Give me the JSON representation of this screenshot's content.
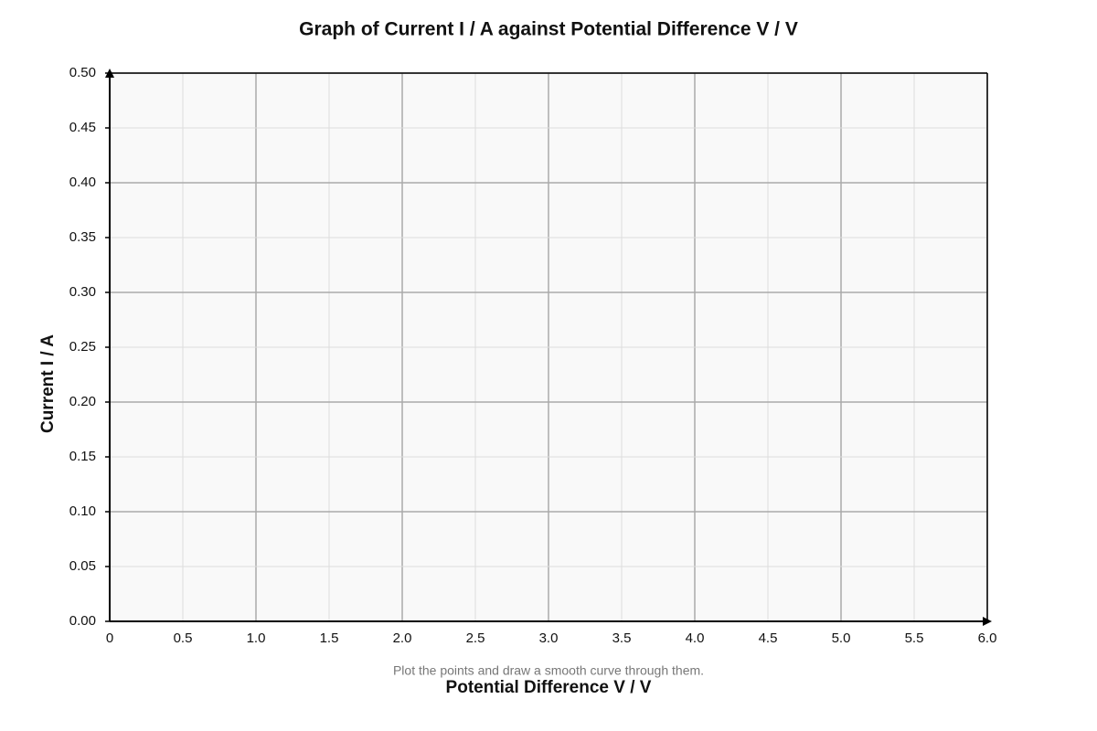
{
  "chart_data": {
    "type": "scatter",
    "title": "Graph of Current I / A against Potential Difference V / V",
    "x_label": "Potential Difference V / V",
    "y_label": "Current I / A",
    "annotation": "Plot the points and draw a smooth curve through them.",
    "xlim": [
      0,
      6
    ],
    "ylim": [
      0,
      0.5
    ],
    "xticks": [
      0,
      0.5,
      {
        "value": 1,
        "label": "1.0"
      },
      1.5,
      {
        "value": 2,
        "label": "2.0"
      },
      2.5,
      {
        "value": 3,
        "label": "3.0"
      },
      3.5,
      {
        "value": 4,
        "label": "4.0"
      },
      4.5,
      {
        "value": 5,
        "label": "5.0"
      },
      5.5,
      {
        "value": 6,
        "label": "6.0"
      }
    ],
    "yticks": [
      {
        "value": 0,
        "label": "0.00"
      },
      0.05,
      {
        "value": 0.1,
        "label": "0.10"
      },
      0.15,
      {
        "value": 0.2,
        "label": "0.20"
      },
      0.25,
      {
        "value": 0.3,
        "label": "0.30"
      },
      0.35,
      {
        "value": 0.4,
        "label": "0.40"
      },
      0.45,
      {
        "value": 0.5,
        "label": "0.50"
      }
    ],
    "grid": true
  }
}
